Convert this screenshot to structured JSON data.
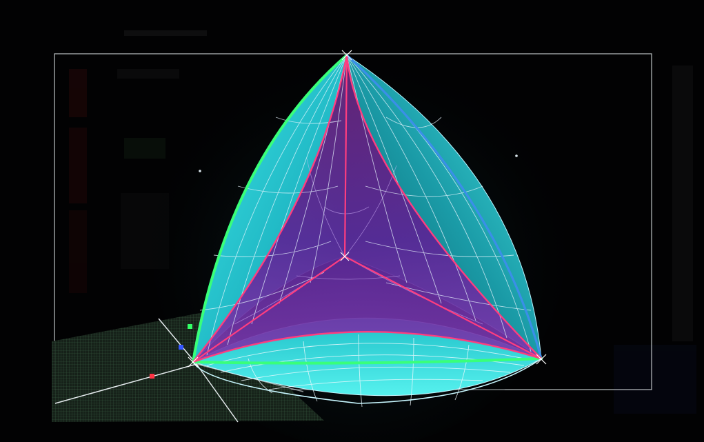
{
  "app": {
    "title": "",
    "status": ""
  },
  "colors": {
    "background": "#020203",
    "frame": "#cfd3d6",
    "face_cyan": "#2ad0d6",
    "face_teal": "#1a8f98",
    "face_purple": "#5a1f8f",
    "face_magenta": "#7a1b7a",
    "edge_green": "#39ff7a",
    "edge_blue": "#3a8fe8",
    "edge_pink": "#ff3d7f",
    "wire_white": "#e8f6ff",
    "floor_grid": "#2e4a33",
    "axis_x": "#ff3344",
    "axis_y": "#33ff66",
    "axis_z": "#3355ff",
    "hud_text": "#8a9aa6"
  },
  "icons": {
    "gizmo": "axis-gizmo-icon",
    "pivot": "crosshair-icon"
  }
}
